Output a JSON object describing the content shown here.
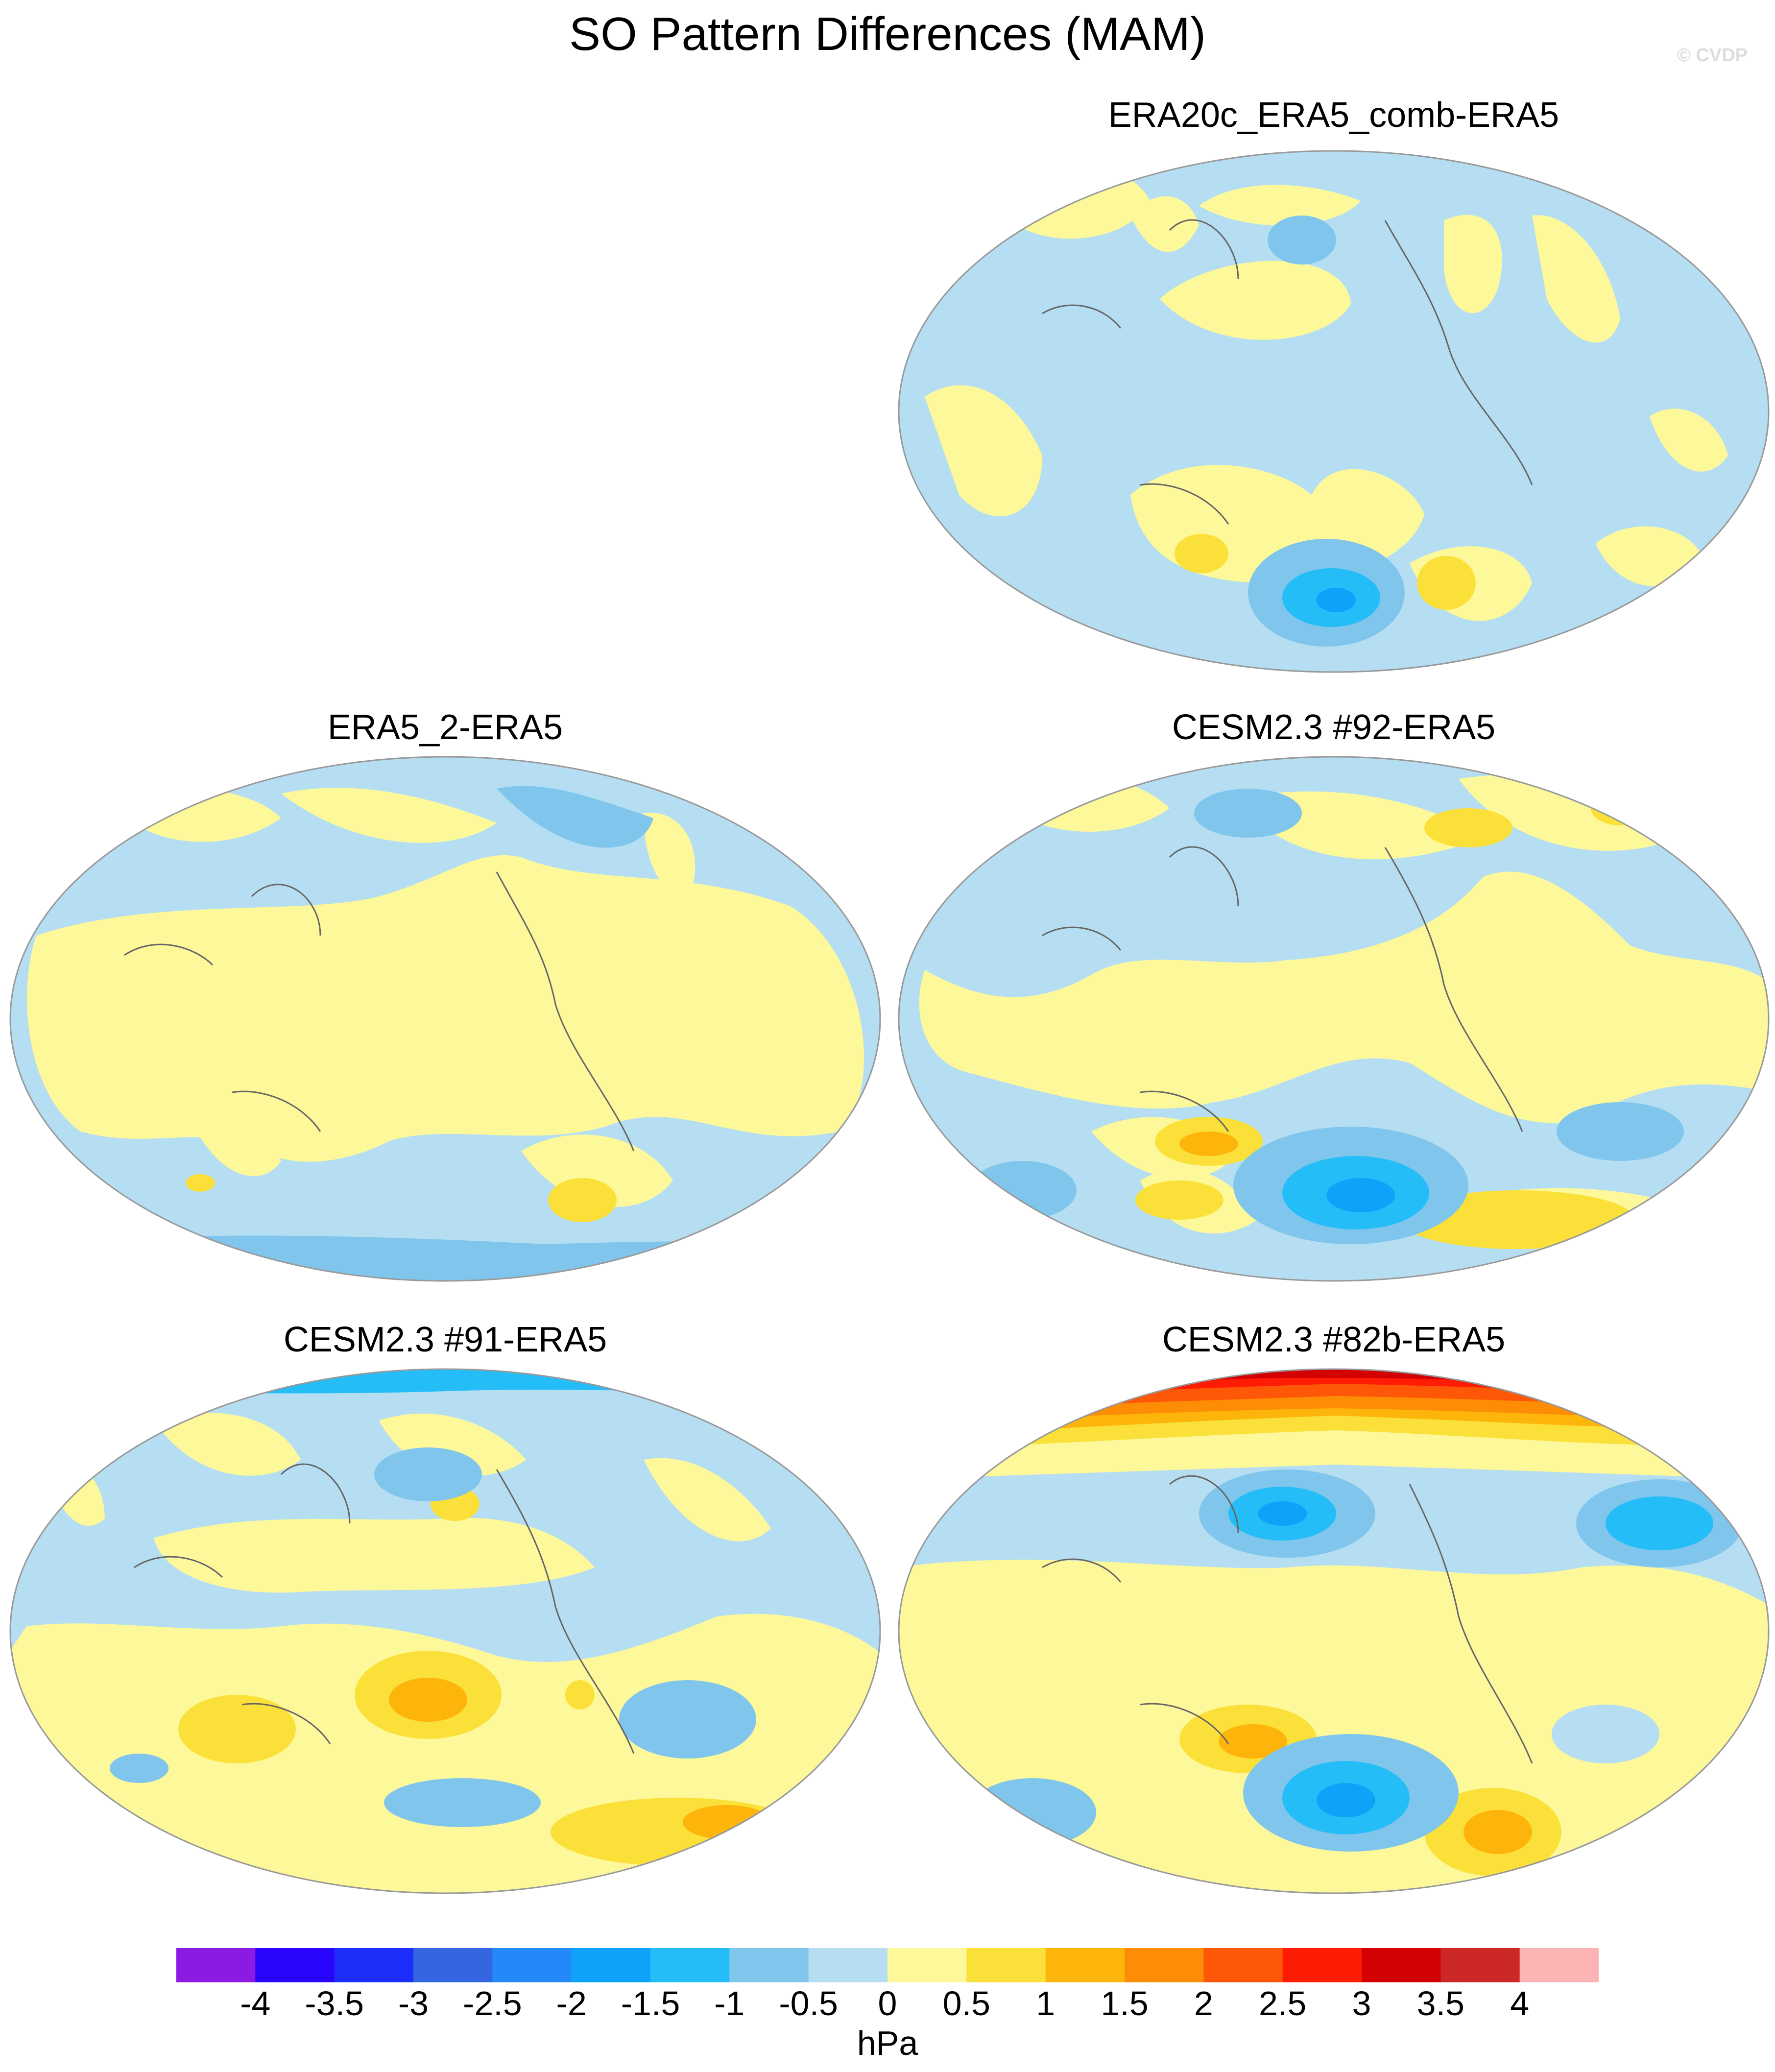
{
  "title": "SO Pattern Differences (MAM)",
  "watermark": "© CVDP",
  "panels": [
    {
      "id": "p1",
      "title": "ERA20c_ERA5_comb-ERA5"
    },
    {
      "id": "p2",
      "title": "ERA5_2-ERA5"
    },
    {
      "id": "p3",
      "title": "CESM2.3 #92-ERA5"
    },
    {
      "id": "p4",
      "title": "CESM2.3 #91-ERA5"
    },
    {
      "id": "p5",
      "title": "CESM2.3 #82b-ERA5"
    }
  ],
  "colorbar": {
    "unit": "hPa",
    "tick_labels": [
      "-4",
      "-3.5",
      "-3",
      "-2.5",
      "-2",
      "-1.5",
      "-1",
      "-0.5",
      "0",
      "0.5",
      "1",
      "1.5",
      "2",
      "2.5",
      "3",
      "3.5",
      "4"
    ],
    "colors": [
      "#8b1be3",
      "#2a05fb",
      "#1d2efb",
      "#3466e2",
      "#2389fb",
      "#0ea3f9",
      "#24bdf7",
      "#80c6ec",
      "#b5def2",
      "#fdf89a",
      "#fce03a",
      "#fdb40b",
      "#fd8d05",
      "#fe5707",
      "#fe1c05",
      "#d40104",
      "#cd2828",
      "#fcb3b3"
    ]
  },
  "legend_colors": {
    "ocean_negative_light": "#b5def2",
    "positive_light": "#fdf89a",
    "coastline": "#666666"
  }
}
